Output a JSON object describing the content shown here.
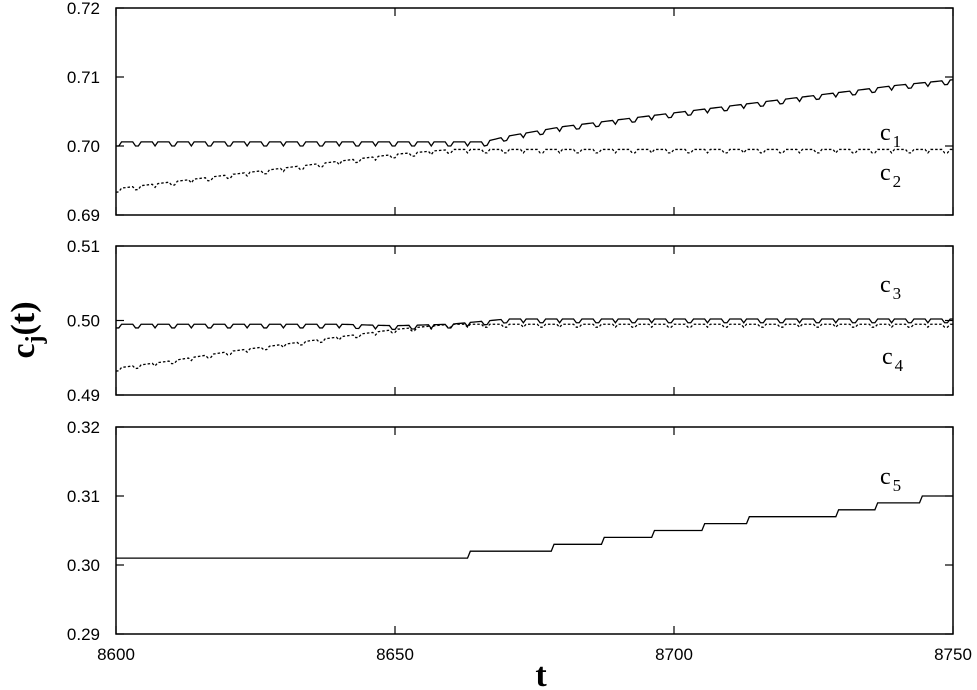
{
  "chart_data": [
    {
      "type": "line",
      "title": "",
      "xlabel": "t",
      "ylabel": "c_j(t)",
      "xlim": [
        8600,
        8750
      ],
      "ylim": [
        0.69,
        0.72
      ],
      "xticks": [
        "8600",
        "8650",
        "8700",
        "8750"
      ],
      "yticks": [
        "0.69",
        "0.70",
        "0.71",
        "0.72"
      ],
      "grid": false,
      "series": [
        {
          "name": "c1",
          "color": "#000000",
          "dash": "solid",
          "x": [
            8600,
            8610,
            8620,
            8630,
            8640,
            8650,
            8660,
            8666,
            8670,
            8680,
            8690,
            8700,
            8710,
            8720,
            8730,
            8740,
            8750
          ],
          "y": [
            0.7006,
            0.7006,
            0.7006,
            0.7006,
            0.7006,
            0.7006,
            0.7006,
            0.7006,
            0.7014,
            0.7028,
            0.7038,
            0.7048,
            0.7058,
            0.7068,
            0.7078,
            0.7088,
            0.7096
          ],
          "wobble": 0.0006
        },
        {
          "name": "c2",
          "color": "#000000",
          "dash": "dotted",
          "x": [
            8600,
            8610,
            8620,
            8630,
            8640,
            8650,
            8660,
            8670,
            8680,
            8690,
            8700,
            8710,
            8720,
            8730,
            8740,
            8750
          ],
          "y": [
            0.6938,
            0.6948,
            0.6958,
            0.6968,
            0.6978,
            0.6988,
            0.6995,
            0.6995,
            0.6995,
            0.6995,
            0.6995,
            0.6995,
            0.6995,
            0.6995,
            0.6995,
            0.6995
          ],
          "wobble": 0.0005
        }
      ]
    },
    {
      "type": "line",
      "title": "",
      "xlim": [
        8600,
        8750
      ],
      "ylim": [
        0.49,
        0.51
      ],
      "xticks": [
        "8600",
        "8650",
        "8700",
        "8750"
      ],
      "yticks": [
        "0.49",
        "0.50",
        "0.51"
      ],
      "grid": false,
      "series": [
        {
          "name": "c3",
          "color": "#000000",
          "dash": "solid",
          "x": [
            8600,
            8610,
            8620,
            8630,
            8640,
            8650,
            8660,
            8670,
            8680,
            8690,
            8700,
            8710,
            8720,
            8730,
            8740,
            8750
          ],
          "y": [
            0.4995,
            0.4995,
            0.4995,
            0.4995,
            0.4995,
            0.4993,
            0.4995,
            0.5002,
            0.5002,
            0.5002,
            0.5002,
            0.5002,
            0.5002,
            0.5002,
            0.5002,
            0.5002
          ],
          "wobble": 0.0005
        },
        {
          "name": "c4",
          "color": "#000000",
          "dash": "dotted",
          "x": [
            8600,
            8610,
            8620,
            8630,
            8640,
            8650,
            8660,
            8670,
            8680,
            8690,
            8700,
            8710,
            8720,
            8730,
            8740,
            8750
          ],
          "y": [
            0.4936,
            0.4946,
            0.4958,
            0.4968,
            0.4978,
            0.4988,
            0.4995,
            0.4995,
            0.4995,
            0.4995,
            0.4995,
            0.4995,
            0.4995,
            0.4995,
            0.4995,
            0.4995
          ],
          "wobble": 0.0004
        }
      ]
    },
    {
      "type": "line",
      "title": "",
      "xlim": [
        8600,
        8750
      ],
      "ylim": [
        0.29,
        0.32
      ],
      "xticks": [
        "8600",
        "8650",
        "8700",
        "8750"
      ],
      "yticks": [
        "0.29",
        "0.30",
        "0.31",
        "0.32"
      ],
      "grid": false,
      "series": [
        {
          "name": "c5",
          "color": "#000000",
          "dash": "solid",
          "x": [
            8600,
            8662,
            8663,
            8677,
            8678,
            8686,
            8687,
            8695,
            8696,
            8704,
            8705,
            8712,
            8713,
            8720,
            8721,
            8728,
            8729,
            8735,
            8736,
            8743,
            8744,
            8750
          ],
          "y": [
            0.301,
            0.301,
            0.302,
            0.302,
            0.303,
            0.303,
            0.304,
            0.304,
            0.305,
            0.305,
            0.306,
            0.306,
            0.307,
            0.307,
            0.307,
            0.307,
            0.308,
            0.308,
            0.309,
            0.309,
            0.31,
            0.31
          ],
          "wobble": 0
        }
      ]
    }
  ],
  "labels": {
    "c1_base": "c",
    "c1_sub": "1",
    "c2_base": "c",
    "c2_sub": "2",
    "c3_base": "c",
    "c3_sub": "3",
    "c4_base": "c",
    "c4_sub": "4",
    "c5_base": "c",
    "c5_sub": "5",
    "ylabel_base": "c",
    "ylabel_sub": "j",
    "ylabel_tail": "(t)",
    "xlabel": "t"
  }
}
